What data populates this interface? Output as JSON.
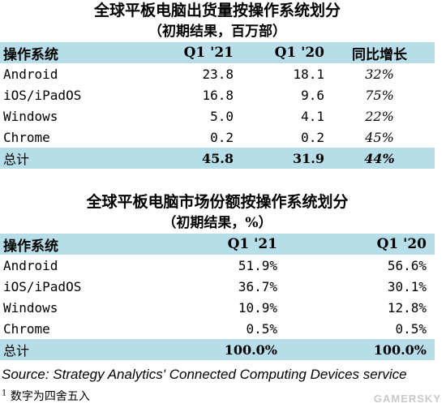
{
  "table1": {
    "title": "全球平板电脑出货量按操作系统划分",
    "subtitle": "（初期结果，百万部）",
    "headers": [
      "操作系统",
      "Q1 '21",
      "Q1 '20",
      "同比增长"
    ],
    "rows": [
      {
        "os": "Android",
        "q1_21": "23.8",
        "q1_20": "18.1",
        "growth": "32%"
      },
      {
        "os": "iOS/iPadOS",
        "q1_21": "16.8",
        "q1_20": "9.6",
        "growth": "75%"
      },
      {
        "os": "Windows",
        "q1_21": "5.0",
        "q1_20": "4.1",
        "growth": "22%"
      },
      {
        "os": "Chrome",
        "q1_21": "0.2",
        "q1_20": "0.2",
        "growth": "45%"
      }
    ],
    "total": {
      "os": "总计",
      "q1_21": "45.8",
      "q1_20": "31.9",
      "growth": "44%"
    }
  },
  "table2": {
    "title": "全球平板电脑市场份额按操作系统划分",
    "subtitle": "（初期结果，%）",
    "headers": [
      "操作系统",
      "Q1 '21",
      "Q1 '20"
    ],
    "rows": [
      {
        "os": "Android",
        "q1_21": "51.9%",
        "q1_20": "56.6%"
      },
      {
        "os": "iOS/iPadOS",
        "q1_21": "36.7%",
        "q1_20": "30.1%"
      },
      {
        "os": "Windows",
        "q1_21": "10.9%",
        "q1_20": "12.8%"
      },
      {
        "os": "Chrome",
        "q1_21": "0.5%",
        "q1_20": "0.5%"
      }
    ],
    "total": {
      "os": "总计",
      "q1_21": "100.0%",
      "q1_20": "100.0%"
    }
  },
  "source": "Source: Strategy Analytics' Connected Computing Devices service",
  "footnote": {
    "marker": "1",
    "text": "数字为四舍五入"
  },
  "watermark": "GAMERSKY",
  "colors": {
    "header_bg": "#b7dde8"
  }
}
